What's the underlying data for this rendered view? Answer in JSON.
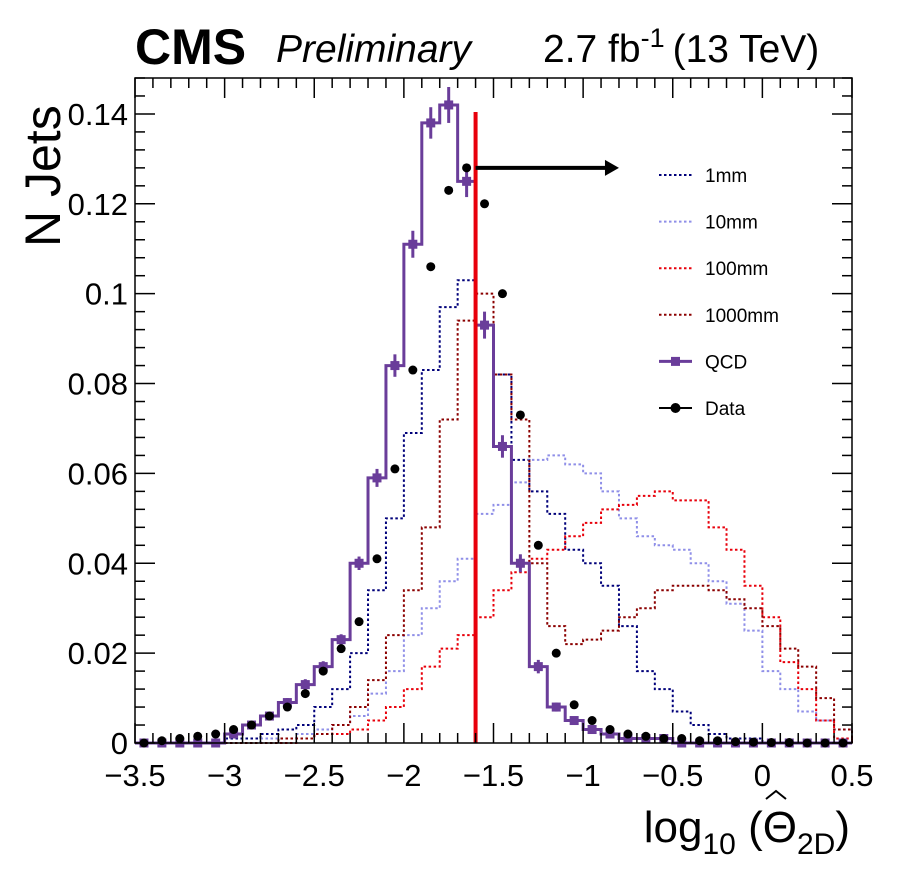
{
  "header": {
    "experiment": "CMS",
    "status": "Preliminary",
    "lumi": "2.7 fb",
    "lumi_sup": "-1",
    "energy": "(13 TeV)"
  },
  "chart_data": {
    "type": "histogram",
    "ylabel": "N Jets",
    "xlabel": {
      "base": "log",
      "base_sub": "10",
      "open": " (",
      "symbol": "Θ",
      "symbol_sub": "2D",
      "close": ")"
    },
    "xlim": [
      -3.5,
      0.5
    ],
    "ylim": [
      0,
      0.148
    ],
    "xticks": [
      -3.5,
      -3,
      -2.5,
      -2,
      -1.5,
      -1,
      -0.5,
      0,
      0.5
    ],
    "xtick_labels": [
      "−3.5",
      "−3",
      "−2.5",
      "−2",
      "−1.5",
      "−1",
      "−0.5",
      "0",
      "0.5"
    ],
    "yticks": [
      0,
      0.02,
      0.04,
      0.06,
      0.08,
      0.1,
      0.12,
      0.14
    ],
    "ytick_labels": [
      "0",
      "0.02",
      "0.04",
      "0.06",
      "0.08",
      "0.1",
      "0.12",
      "0.14"
    ],
    "bin_edges_start": -3.5,
    "bin_width": 0.1,
    "cut": {
      "x": -1.6,
      "arrow_to": -0.8,
      "arrow_y": 0.128,
      "color": "#e8000b"
    },
    "legend_position": "top-right",
    "series": [
      {
        "name": "1mm",
        "style": "dotted-step",
        "color": "#00007a",
        "values": [
          0,
          0,
          0,
          0,
          0,
          0.001,
          0.001,
          0.002,
          0.003,
          0.004,
          0.008,
          0.012,
          0.02,
          0.034,
          0.05,
          0.069,
          0.083,
          0.097,
          0.103,
          0.093,
          0.082,
          0.063,
          0.056,
          0.051,
          0.043,
          0.04,
          0.035,
          0.026,
          0.016,
          0.012,
          0.007,
          0.004,
          0.002,
          0.001,
          0.001,
          0,
          0,
          0,
          0,
          0
        ]
      },
      {
        "name": "10mm",
        "style": "dotted-step",
        "color": "#8f8fe8",
        "values": [
          0,
          0,
          0,
          0,
          0,
          0,
          0,
          0.001,
          0.001,
          0.002,
          0.003,
          0.004,
          0.006,
          0.011,
          0.016,
          0.024,
          0.03,
          0.036,
          0.041,
          0.051,
          0.053,
          0.058,
          0.063,
          0.064,
          0.062,
          0.06,
          0.056,
          0.05,
          0.046,
          0.044,
          0.043,
          0.04,
          0.036,
          0.031,
          0.025,
          0.016,
          0.012,
          0.007,
          0.005,
          0.003
        ]
      },
      {
        "name": "100mm",
        "style": "dotted-step",
        "color": "#e8000b",
        "values": [
          0,
          0,
          0,
          0,
          0,
          0,
          0,
          0,
          0,
          0.001,
          0.002,
          0.002,
          0.003,
          0.005,
          0.008,
          0.012,
          0.017,
          0.021,
          0.024,
          0.028,
          0.034,
          0.038,
          0.041,
          0.043,
          0.046,
          0.049,
          0.052,
          0.053,
          0.055,
          0.056,
          0.054,
          0.054,
          0.048,
          0.043,
          0.035,
          0.028,
          0.018,
          0.012,
          0.005,
          0.001
        ]
      },
      {
        "name": "1000mm",
        "style": "dotted-step",
        "color": "#8b0000",
        "values": [
          0,
          0,
          0,
          0,
          0,
          0,
          0,
          0,
          0.001,
          0.001,
          0.002,
          0.004,
          0.008,
          0.014,
          0.024,
          0.034,
          0.048,
          0.072,
          0.094,
          0.1,
          0.082,
          0.072,
          0.04,
          0.026,
          0.022,
          0.023,
          0.025,
          0.028,
          0.03,
          0.034,
          0.035,
          0.035,
          0.034,
          0.032,
          0.03,
          0.026,
          0.021,
          0.017,
          0.01,
          0.003
        ]
      },
      {
        "name": "QCD",
        "style": "solid-step-markers",
        "color": "#6a3d9a",
        "values": [
          0,
          0,
          0,
          0,
          0,
          0.002,
          0.004,
          0.006,
          0.009,
          0.013,
          0.017,
          0.023,
          0.04,
          0.059,
          0.084,
          0.111,
          0.138,
          0.142,
          0.125,
          0.093,
          0.066,
          0.04,
          0.017,
          0.008,
          0.005,
          0.003,
          0.002,
          0.001,
          0.001,
          0.001,
          0,
          0,
          0,
          0,
          0,
          0,
          0,
          0,
          0,
          0
        ],
        "errors": [
          0,
          0,
          0,
          0,
          0,
          0.0005,
          0.0008,
          0.001,
          0.001,
          0.0012,
          0.0012,
          0.0012,
          0.0015,
          0.002,
          0.0025,
          0.003,
          0.0035,
          0.004,
          0.0035,
          0.003,
          0.0025,
          0.002,
          0.0015,
          0.001,
          0.0008,
          0.0006,
          0,
          0,
          0,
          0,
          0,
          0,
          0,
          0,
          0,
          0,
          0,
          0,
          0,
          0
        ]
      },
      {
        "name": "Data",
        "style": "points",
        "color": "#000000",
        "values": [
          0,
          0.0005,
          0.001,
          0.0015,
          0.002,
          0.003,
          0.004,
          0.006,
          0.008,
          0.011,
          0.016,
          0.021,
          0.027,
          0.041,
          0.061,
          0.083,
          0.106,
          0.123,
          0.128,
          0.12,
          0.1,
          0.073,
          0.044,
          0.02,
          0.0085,
          0.005,
          0.003,
          0.002,
          0.0015,
          0.001,
          0.001,
          0.0005,
          0.0005,
          0.0003,
          0.0002,
          0.0001,
          0.0001,
          0,
          0,
          0
        ]
      }
    ]
  }
}
